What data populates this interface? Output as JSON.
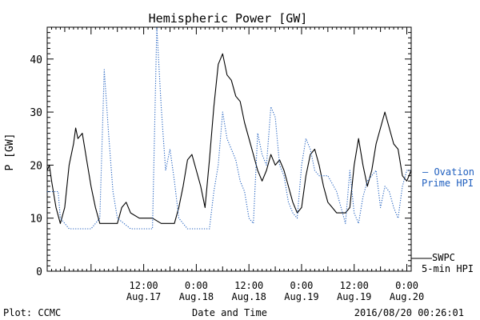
{
  "chart_data": {
    "type": "line",
    "title": "Hemispheric Power [GW]",
    "xlabel": "Date and Time",
    "ylabel": "P [GW]",
    "ylim": [
      0,
      46
    ],
    "xlim": [
      "2016-08-16T14:00",
      "2016-08-20T01:00"
    ],
    "grid": false,
    "yticks": [
      0,
      10,
      20,
      30,
      40
    ],
    "xticks": [
      {
        "t": "2016-08-17T12:00",
        "label1": "12:00",
        "label2": "Aug.17"
      },
      {
        "t": "2016-08-18T00:00",
        "label1": "0:00",
        "label2": "Aug.18"
      },
      {
        "t": "2016-08-18T12:00",
        "label1": "12:00",
        "label2": "Aug.18"
      },
      {
        "t": "2016-08-19T00:00",
        "label1": "0:00",
        "label2": "Aug.19"
      },
      {
        "t": "2016-08-19T12:00",
        "label1": "12:00",
        "label2": "Aug.19"
      },
      {
        "t": "2016-08-20T00:00",
        "label1": "0:00",
        "label2": "Aug.20"
      }
    ],
    "series": [
      {
        "name": "SWPC 5-min HPI",
        "color": "#000000",
        "style": "solid",
        "points": [
          [
            "2016-08-16T14:00",
            19
          ],
          [
            "2016-08-16T14:30",
            20
          ],
          [
            "2016-08-16T15:00",
            17
          ],
          [
            "2016-08-16T16:00",
            12
          ],
          [
            "2016-08-16T17:00",
            9
          ],
          [
            "2016-08-16T18:00",
            12
          ],
          [
            "2016-08-16T19:00",
            20
          ],
          [
            "2016-08-16T20:00",
            24
          ],
          [
            "2016-08-16T20:30",
            27
          ],
          [
            "2016-08-16T21:00",
            25
          ],
          [
            "2016-08-16T22:00",
            26
          ],
          [
            "2016-08-16T23:00",
            21
          ],
          [
            "2016-08-17T00:00",
            16
          ],
          [
            "2016-08-17T01:00",
            12
          ],
          [
            "2016-08-17T02:00",
            9
          ],
          [
            "2016-08-17T04:00",
            9
          ],
          [
            "2016-08-17T06:00",
            9
          ],
          [
            "2016-08-17T07:00",
            12
          ],
          [
            "2016-08-17T08:00",
            13
          ],
          [
            "2016-08-17T09:00",
            11
          ],
          [
            "2016-08-17T11:00",
            10
          ],
          [
            "2016-08-17T14:00",
            10
          ],
          [
            "2016-08-17T16:00",
            9
          ],
          [
            "2016-08-17T19:00",
            9
          ],
          [
            "2016-08-17T20:00",
            12
          ],
          [
            "2016-08-17T21:00",
            16
          ],
          [
            "2016-08-17T22:00",
            21
          ],
          [
            "2016-08-17T23:00",
            22
          ],
          [
            "2016-08-18T00:00",
            19
          ],
          [
            "2016-08-18T01:00",
            16
          ],
          [
            "2016-08-18T02:00",
            12
          ],
          [
            "2016-08-18T03:00",
            21
          ],
          [
            "2016-08-18T04:00",
            31
          ],
          [
            "2016-08-18T05:00",
            39
          ],
          [
            "2016-08-18T06:00",
            41
          ],
          [
            "2016-08-18T07:00",
            37
          ],
          [
            "2016-08-18T08:00",
            36
          ],
          [
            "2016-08-18T09:00",
            33
          ],
          [
            "2016-08-18T10:00",
            32
          ],
          [
            "2016-08-18T11:00",
            28
          ],
          [
            "2016-08-18T12:00",
            25
          ],
          [
            "2016-08-18T13:00",
            22
          ],
          [
            "2016-08-18T14:00",
            19
          ],
          [
            "2016-08-18T15:00",
            17
          ],
          [
            "2016-08-18T16:00",
            19
          ],
          [
            "2016-08-18T17:00",
            22
          ],
          [
            "2016-08-18T18:00",
            20
          ],
          [
            "2016-08-18T19:00",
            21
          ],
          [
            "2016-08-18T20:00",
            19
          ],
          [
            "2016-08-18T21:00",
            16
          ],
          [
            "2016-08-18T22:00",
            13
          ],
          [
            "2016-08-18T23:00",
            11
          ],
          [
            "2016-08-19T00:00",
            12
          ],
          [
            "2016-08-19T01:00",
            18
          ],
          [
            "2016-08-19T02:00",
            22
          ],
          [
            "2016-08-19T03:00",
            23
          ],
          [
            "2016-08-19T04:00",
            20
          ],
          [
            "2016-08-19T05:00",
            16
          ],
          [
            "2016-08-19T06:00",
            13
          ],
          [
            "2016-08-19T07:00",
            12
          ],
          [
            "2016-08-19T08:00",
            11
          ],
          [
            "2016-08-19T10:00",
            11
          ],
          [
            "2016-08-19T11:00",
            12
          ],
          [
            "2016-08-19T12:00",
            20
          ],
          [
            "2016-08-19T13:00",
            25
          ],
          [
            "2016-08-19T14:00",
            20
          ],
          [
            "2016-08-19T15:00",
            16
          ],
          [
            "2016-08-19T16:00",
            19
          ],
          [
            "2016-08-19T17:00",
            24
          ],
          [
            "2016-08-19T18:00",
            27
          ],
          [
            "2016-08-19T19:00",
            30
          ],
          [
            "2016-08-19T20:00",
            27
          ],
          [
            "2016-08-19T21:00",
            24
          ],
          [
            "2016-08-19T22:00",
            23
          ],
          [
            "2016-08-19T23:00",
            18
          ],
          [
            "2016-08-20T00:00",
            17
          ],
          [
            "2016-08-20T01:00",
            19
          ]
        ]
      },
      {
        "name": "Ovation Prime HPI",
        "color": "#1f5fbf",
        "style": "dotted",
        "points": [
          [
            "2016-08-16T14:00",
            15
          ],
          [
            "2016-08-16T16:30",
            15
          ],
          [
            "2016-08-16T17:00",
            10
          ],
          [
            "2016-08-16T18:00",
            9
          ],
          [
            "2016-08-16T19:00",
            8
          ],
          [
            "2016-08-16T20:00",
            8
          ],
          [
            "2016-08-17T00:00",
            8
          ],
          [
            "2016-08-17T02:00",
            10
          ],
          [
            "2016-08-17T03:00",
            38
          ],
          [
            "2016-08-17T04:00",
            26
          ],
          [
            "2016-08-17T05:00",
            15
          ],
          [
            "2016-08-17T06:00",
            10
          ],
          [
            "2016-08-17T09:00",
            8
          ],
          [
            "2016-08-17T14:00",
            8
          ],
          [
            "2016-08-17T15:00",
            46
          ],
          [
            "2016-08-17T16:00",
            31
          ],
          [
            "2016-08-17T17:00",
            19
          ],
          [
            "2016-08-17T18:00",
            23
          ],
          [
            "2016-08-17T19:00",
            17
          ],
          [
            "2016-08-17T20:00",
            10
          ],
          [
            "2016-08-17T22:00",
            8
          ],
          [
            "2016-08-18T03:00",
            8
          ],
          [
            "2016-08-18T04:00",
            15
          ],
          [
            "2016-08-18T05:00",
            20
          ],
          [
            "2016-08-18T06:00",
            30
          ],
          [
            "2016-08-18T07:00",
            25
          ],
          [
            "2016-08-18T08:00",
            23
          ],
          [
            "2016-08-18T09:00",
            21
          ],
          [
            "2016-08-18T10:00",
            17
          ],
          [
            "2016-08-18T11:00",
            15
          ],
          [
            "2016-08-18T12:00",
            10
          ],
          [
            "2016-08-18T13:00",
            9
          ],
          [
            "2016-08-18T14:00",
            26
          ],
          [
            "2016-08-18T15:00",
            22
          ],
          [
            "2016-08-18T16:00",
            20
          ],
          [
            "2016-08-18T17:00",
            31
          ],
          [
            "2016-08-18T18:00",
            29
          ],
          [
            "2016-08-18T19:00",
            20
          ],
          [
            "2016-08-18T20:00",
            18
          ],
          [
            "2016-08-18T21:00",
            13
          ],
          [
            "2016-08-18T22:00",
            11
          ],
          [
            "2016-08-18T23:00",
            10
          ],
          [
            "2016-08-19T00:00",
            20
          ],
          [
            "2016-08-19T01:00",
            25
          ],
          [
            "2016-08-19T02:00",
            23
          ],
          [
            "2016-08-19T03:00",
            19
          ],
          [
            "2016-08-19T04:00",
            18
          ],
          [
            "2016-08-19T06:00",
            18
          ],
          [
            "2016-08-19T08:00",
            15
          ],
          [
            "2016-08-19T09:00",
            12
          ],
          [
            "2016-08-19T10:00",
            9
          ],
          [
            "2016-08-19T11:00",
            19
          ],
          [
            "2016-08-19T12:00",
            11
          ],
          [
            "2016-08-19T13:00",
            9
          ],
          [
            "2016-08-19T14:00",
            14
          ],
          [
            "2016-08-19T15:00",
            17
          ],
          [
            "2016-08-19T16:00",
            18
          ],
          [
            "2016-08-19T17:00",
            19
          ],
          [
            "2016-08-19T18:00",
            12
          ],
          [
            "2016-08-19T19:00",
            16
          ],
          [
            "2016-08-19T20:00",
            15
          ],
          [
            "2016-08-19T21:00",
            12
          ],
          [
            "2016-08-19T22:00",
            10
          ],
          [
            "2016-08-19T23:00",
            16
          ],
          [
            "2016-08-20T00:00",
            19
          ],
          [
            "2016-08-20T01:00",
            19
          ]
        ]
      }
    ]
  },
  "legend": {
    "ovation_line1": "– Ovation",
    "ovation_line2": "Prime HPI",
    "swpc_line1": "SWPC",
    "swpc_line2": "5-min HPI"
  },
  "footer": {
    "left": "Plot: CCMC",
    "center": "Date and Time",
    "right": "2016/08/20 00:26:01"
  }
}
